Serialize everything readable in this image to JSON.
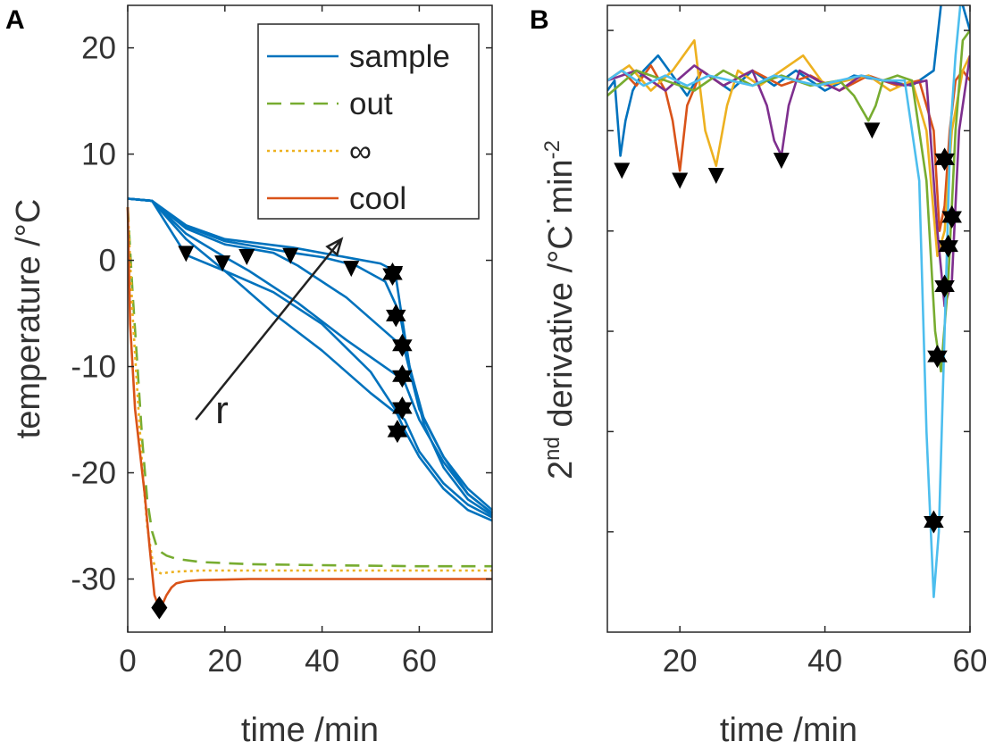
{
  "colors": {
    "blue": "#0072BD",
    "orange": "#D95319",
    "yellow": "#EDB120",
    "purple": "#7E2F8E",
    "green": "#77AC30",
    "cyan": "#4DBEEE",
    "axis": "#262626",
    "text": "#333333"
  },
  "chart_data": [
    {
      "panel": "A",
      "type": "line",
      "xlabel": "time /min",
      "ylabel": "temperature /°C",
      "xlim": [
        0,
        75
      ],
      "ylim": [
        -35,
        24
      ],
      "xticks": [
        0,
        20,
        40,
        60
      ],
      "yticks": [
        20,
        10,
        0,
        -10,
        -20,
        -30
      ],
      "xtick_labels": [
        "0",
        "20",
        "40",
        "60"
      ],
      "ytick_labels": [
        "20",
        "10",
        "0",
        "-10",
        "-20",
        "-30"
      ],
      "legend": [
        {
          "label": "sample",
          "style": "solid",
          "color": "#0072BD"
        },
        {
          "label": "out",
          "style": "dashed",
          "color": "#77AC30"
        },
        {
          "label": "∞",
          "style": "dotted",
          "color": "#EDB120"
        },
        {
          "label": "cool",
          "style": "solid",
          "color": "#D95319"
        }
      ],
      "annotation": {
        "text": "r",
        "from": [
          14,
          -15
        ],
        "to": [
          44,
          2
        ]
      },
      "series": [
        {
          "name": "sample",
          "color": "#0072BD",
          "style": "solid",
          "x": [
            0,
            5,
            12,
            20,
            30,
            40,
            50,
            55,
            57,
            60,
            65,
            70,
            75
          ],
          "y": [
            5.8,
            5.6,
            0.5,
            -1.0,
            -3.0,
            -6.0,
            -10.5,
            -14.0,
            -16.0,
            -18.5,
            -21.5,
            -23.5,
            -24.5
          ]
        },
        {
          "name": "sample",
          "color": "#0072BD",
          "style": "solid",
          "x": [
            0,
            5,
            12,
            20,
            30,
            40,
            50,
            55,
            57,
            60,
            65,
            70,
            75
          ],
          "y": [
            5.8,
            5.6,
            2.0,
            -1.0,
            -5.0,
            -8.5,
            -12.5,
            -14.3,
            -15.0,
            -18.0,
            -21.0,
            -23.0,
            -24.2
          ]
        },
        {
          "name": "sample",
          "color": "#0072BD",
          "style": "solid",
          "x": [
            0,
            5,
            12,
            20,
            25,
            35,
            45,
            55,
            57,
            60,
            65,
            70,
            75
          ],
          "y": [
            5.8,
            5.6,
            2.5,
            0.3,
            -1.0,
            -4.0,
            -7.5,
            -10.7,
            -11.5,
            -15.0,
            -19.0,
            -22.0,
            -23.8
          ]
        },
        {
          "name": "sample",
          "color": "#0072BD",
          "style": "solid",
          "x": [
            0,
            5,
            12,
            20,
            30,
            35,
            45,
            55,
            57,
            60,
            65,
            70,
            75
          ],
          "y": [
            5.8,
            5.6,
            3.0,
            1.5,
            0.7,
            -0.5,
            -3.5,
            -7.5,
            -8.5,
            -14.0,
            -18.5,
            -21.5,
            -23.5
          ]
        },
        {
          "name": "sample",
          "color": "#0072BD",
          "style": "solid",
          "x": [
            0,
            5,
            12,
            20,
            34,
            40,
            47,
            53,
            56,
            58,
            61,
            65,
            70,
            75
          ],
          "y": [
            5.8,
            5.6,
            3.2,
            1.8,
            0.7,
            0.3,
            -0.5,
            -2.0,
            -5.0,
            -10.0,
            -15.0,
            -18.5,
            -22.0,
            -23.8
          ]
        },
        {
          "name": "sample",
          "color": "#0072BD",
          "style": "solid",
          "x": [
            0,
            5,
            12,
            20,
            34,
            46,
            52,
            55,
            56,
            58,
            61,
            65,
            70,
            75
          ],
          "y": [
            5.8,
            5.6,
            3.3,
            2.0,
            1.2,
            0.2,
            -0.3,
            -1.0,
            -4.0,
            -10.0,
            -15.5,
            -19.5,
            -22.5,
            -24.0
          ]
        },
        {
          "name": "out",
          "color": "#77AC30",
          "style": "dashed",
          "x": [
            0,
            1,
            2,
            3,
            4,
            5,
            6,
            7,
            8,
            10,
            15,
            25,
            40,
            60,
            75
          ],
          "y": [
            5.0,
            -3.0,
            -10.0,
            -17.0,
            -22.5,
            -25.5,
            -27.0,
            -27.5,
            -27.8,
            -28.1,
            -28.4,
            -28.6,
            -28.7,
            -28.8,
            -28.8
          ]
        },
        {
          "name": "∞",
          "color": "#EDB120",
          "style": "dotted",
          "x": [
            0,
            1,
            2,
            3,
            4,
            5,
            6,
            7,
            8,
            10,
            15,
            25,
            40,
            60,
            75
          ],
          "y": [
            5.0,
            -5.0,
            -12.5,
            -19.5,
            -25.0,
            -28.0,
            -29.3,
            -29.5,
            -29.4,
            -29.3,
            -29.2,
            -29.2,
            -29.2,
            -29.2,
            -29.2
          ]
        },
        {
          "name": "cool",
          "color": "#D95319",
          "style": "solid",
          "x": [
            0,
            0.5,
            1.5,
            2.5,
            3.5,
            4.5,
            5.5,
            6.5,
            7,
            8,
            9,
            10,
            12,
            15,
            25,
            40,
            60,
            75
          ],
          "y": [
            5.0,
            -6.0,
            -14.0,
            -18.0,
            -22.0,
            -27.0,
            -31.5,
            -32.8,
            -32.5,
            -31.5,
            -30.8,
            -30.4,
            -30.2,
            -30.1,
            -30.0,
            -30.0,
            -30.0,
            -30.0
          ]
        }
      ],
      "markers": [
        {
          "type": "triangle",
          "x": 12,
          "y": 0.6
        },
        {
          "type": "triangle",
          "x": 19.5,
          "y": -0.3
        },
        {
          "type": "triangle",
          "x": 24.5,
          "y": 0.3
        },
        {
          "type": "triangle",
          "x": 33.5,
          "y": 0.4
        },
        {
          "type": "triangle",
          "x": 46,
          "y": -0.8
        },
        {
          "type": "triangle",
          "x": 55,
          "y": -1.3
        },
        {
          "type": "star",
          "x": 54.5,
          "y": -1.3
        },
        {
          "type": "star",
          "x": 55.2,
          "y": -5.2
        },
        {
          "type": "star",
          "x": 56.5,
          "y": -8.0
        },
        {
          "type": "star",
          "x": 56.5,
          "y": -10.9
        },
        {
          "type": "star",
          "x": 56.5,
          "y": -13.9
        },
        {
          "type": "star",
          "x": 55.5,
          "y": -16.1
        },
        {
          "type": "diamond",
          "x": 6.5,
          "y": -32.7
        }
      ]
    },
    {
      "panel": "B",
      "type": "line",
      "xlabel": "time /min",
      "ylabel": "2nd derivative /°C˙min⁻²",
      "ylabel_parts": {
        "pre": "2",
        "sup1": "nd",
        "mid": " derivative /°C",
        "dot": "˙",
        "post": "min",
        "sup2": "-2"
      },
      "xlim": [
        10,
        60
      ],
      "ylim": [
        -1.1,
        0.15
      ],
      "xticks": [
        20,
        40,
        60
      ],
      "xtick_labels": [
        "20",
        "40",
        "60"
      ],
      "yticks": [
        0.1,
        -0.1,
        -0.3,
        -0.5,
        -0.7,
        -0.9
      ],
      "series": [
        {
          "name": "blue",
          "color": "#0072BD",
          "x": [
            10,
            11,
            11.8,
            12.5,
            13.5,
            15,
            17,
            19,
            21,
            23,
            25,
            27,
            30,
            33,
            36,
            40,
            44,
            48,
            52,
            55,
            56,
            57,
            58,
            59,
            60
          ],
          "y": [
            -0.02,
            0.0,
            -0.15,
            -0.08,
            -0.02,
            0.02,
            0.05,
            0.01,
            -0.03,
            0.02,
            0.0,
            -0.02,
            0.02,
            -0.01,
            0.02,
            -0.02,
            0.01,
            0.0,
            -0.01,
            0.02,
            0.15,
            0.3,
            0.2,
            0.15,
            0.1
          ]
        },
        {
          "name": "orange",
          "color": "#D95319",
          "x": [
            10,
            12,
            14,
            16,
            18,
            19,
            20,
            21,
            23,
            26,
            30,
            34,
            38,
            42,
            46,
            50,
            53,
            55,
            55.8,
            56.5,
            57.2,
            58,
            59,
            60
          ],
          "y": [
            0.0,
            0.02,
            -0.01,
            0.03,
            -0.02,
            -0.08,
            -0.18,
            -0.05,
            0.02,
            -0.01,
            0.02,
            -0.01,
            0.01,
            -0.02,
            0.01,
            -0.01,
            0.0,
            -0.1,
            -0.3,
            -0.25,
            -0.1,
            0.0,
            0.02,
            0.0
          ]
        },
        {
          "name": "yellow",
          "color": "#EDB120",
          "x": [
            10,
            13,
            16,
            19,
            22,
            23.5,
            25,
            26.5,
            28,
            31,
            34,
            37,
            40,
            43,
            46,
            49,
            52,
            54,
            55.5,
            56.5,
            57.5,
            59,
            60
          ],
          "y": [
            0.0,
            0.03,
            -0.02,
            0.02,
            0.08,
            -0.1,
            -0.17,
            -0.05,
            0.02,
            -0.01,
            0.02,
            0.05,
            -0.01,
            0.0,
            0.01,
            -0.02,
            0.0,
            -0.1,
            -0.35,
            -0.3,
            -0.1,
            0.02,
            0.05
          ]
        },
        {
          "name": "purple",
          "color": "#7E2F8E",
          "x": [
            10,
            14,
            18,
            22,
            26,
            30,
            32,
            33,
            34,
            35,
            36.5,
            39,
            42,
            45,
            48,
            51,
            54,
            55.5,
            56.5,
            57.5,
            58.5,
            60
          ],
          "y": [
            0.0,
            0.02,
            -0.02,
            0.03,
            -0.01,
            0.02,
            -0.05,
            -0.12,
            -0.15,
            -0.05,
            0.02,
            0.0,
            -0.02,
            0.01,
            0.0,
            -0.01,
            0.0,
            -0.3,
            -0.45,
            -0.4,
            -0.1,
            0.05
          ]
        },
        {
          "name": "green",
          "color": "#77AC30",
          "x": [
            10,
            14,
            18,
            22,
            26,
            30,
            34,
            38,
            42,
            44,
            46,
            47,
            48,
            50,
            52,
            54,
            55.2,
            56,
            57,
            58,
            59,
            60
          ],
          "y": [
            -0.03,
            0.02,
            0.0,
            -0.02,
            0.02,
            -0.01,
            0.01,
            -0.01,
            0.0,
            -0.03,
            -0.08,
            -0.05,
            0.0,
            0.01,
            0.0,
            -0.2,
            -0.5,
            -0.58,
            -0.4,
            -0.1,
            0.08,
            0.1
          ]
        },
        {
          "name": "cyan",
          "color": "#4DBEEE",
          "x": [
            10,
            12,
            15,
            18,
            21,
            24,
            27,
            30,
            33,
            36,
            39,
            42,
            45,
            48,
            51,
            53,
            54,
            55,
            55.7,
            56.5,
            57.3,
            58,
            59,
            60
          ],
          "y": [
            0.0,
            0.02,
            -0.01,
            0.01,
            -0.01,
            0.01,
            0.0,
            -0.01,
            0.01,
            0.0,
            -0.01,
            0.0,
            0.01,
            0.0,
            0.0,
            -0.2,
            -0.7,
            -1.03,
            -0.9,
            -0.5,
            -0.1,
            0.05,
            0.2,
            0.15
          ]
        }
      ],
      "markers": [
        {
          "type": "triangle",
          "x": 12,
          "y": -0.18
        },
        {
          "type": "triangle",
          "x": 20,
          "y": -0.2
        },
        {
          "type": "triangle",
          "x": 25,
          "y": -0.19
        },
        {
          "type": "triangle",
          "x": 34,
          "y": -0.16
        },
        {
          "type": "triangle",
          "x": 46.5,
          "y": -0.1
        },
        {
          "type": "star",
          "x": 56.5,
          "y": -0.157
        },
        {
          "type": "star",
          "x": 57.5,
          "y": -0.272
        },
        {
          "type": "star",
          "x": 57,
          "y": -0.33
        },
        {
          "type": "star",
          "x": 56.5,
          "y": -0.41
        },
        {
          "type": "star",
          "x": 55.5,
          "y": -0.55
        },
        {
          "type": "star",
          "x": 55,
          "y": -0.88
        }
      ]
    }
  ]
}
